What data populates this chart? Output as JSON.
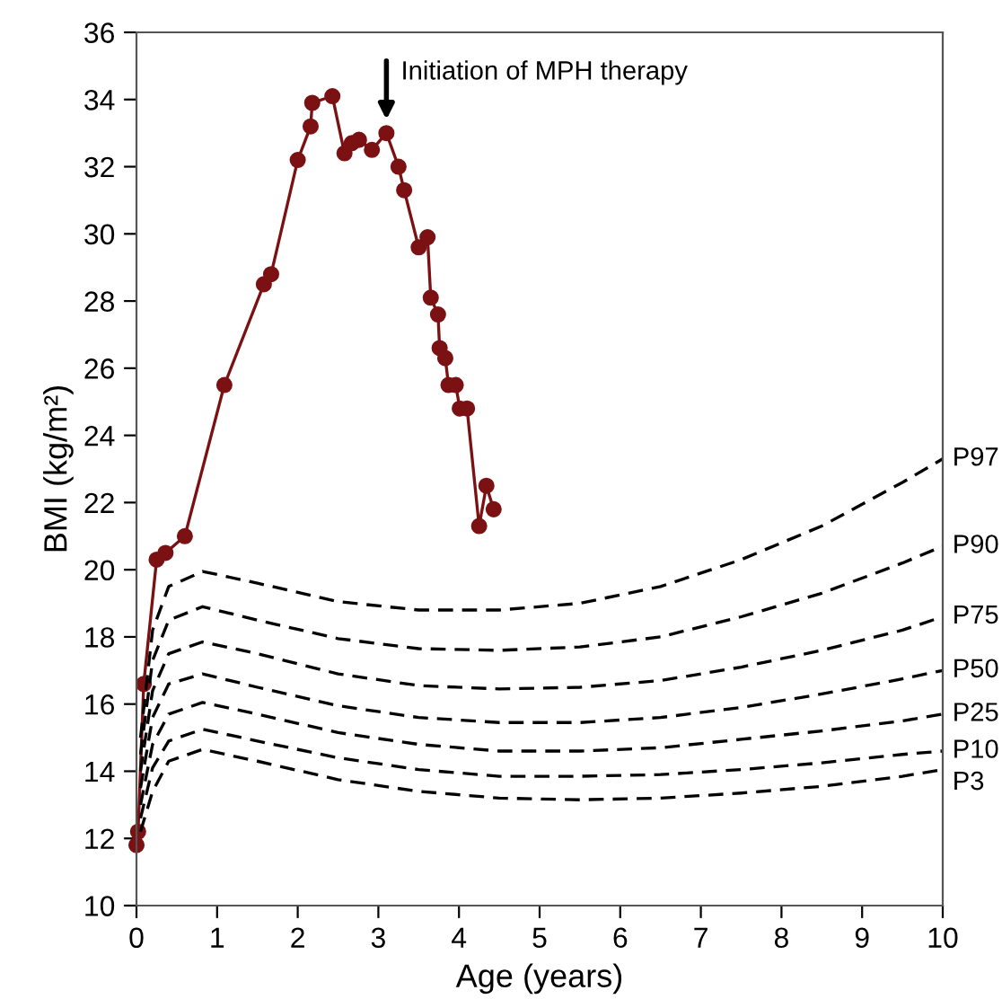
{
  "chart_data": {
    "type": "line",
    "xlabel": "Age (years)",
    "ylabel": "BMI (kg/m²)",
    "xlim": [
      0,
      10
    ],
    "ylim": [
      10,
      36
    ],
    "xticks": [
      0,
      1,
      2,
      3,
      4,
      5,
      6,
      7,
      8,
      9,
      10
    ],
    "yticks": [
      10,
      12,
      14,
      16,
      18,
      20,
      22,
      24,
      26,
      28,
      30,
      32,
      34,
      36
    ],
    "grid": false,
    "legend": false,
    "annotations": [
      {
        "text": "Initiation of MPH therapy",
        "x": 3.1,
        "y": 33.0
      }
    ],
    "series": [
      {
        "color": "#7b1113",
        "marker": "circle",
        "line_style": "solid",
        "x": [
          0.0,
          0.02,
          0.09,
          0.25,
          0.36,
          0.6,
          1.09,
          1.58,
          1.67,
          2.0,
          2.16,
          2.18,
          2.43,
          2.58,
          2.67,
          2.76,
          2.92,
          3.1,
          3.25,
          3.32,
          3.5,
          3.61,
          3.65,
          3.74,
          3.76,
          3.83,
          3.87,
          3.96,
          4.01,
          4.1,
          4.25,
          4.34,
          4.43
        ],
        "values": [
          11.8,
          12.2,
          16.6,
          20.3,
          20.5,
          21.0,
          25.5,
          28.5,
          28.8,
          32.2,
          33.2,
          33.9,
          34.1,
          32.4,
          32.7,
          32.8,
          32.5,
          33.0,
          32.0,
          31.3,
          29.6,
          29.9,
          28.1,
          27.6,
          26.6,
          26.3,
          25.5,
          25.5,
          24.8,
          24.8,
          21.3,
          22.5,
          21.8
        ]
      },
      {
        "name": "P97",
        "color": "#000000",
        "marker": "none",
        "line_style": "dashed",
        "x": [
          0.05,
          0.2,
          0.4,
          0.82,
          1.5,
          2.5,
          3.5,
          4.5,
          5.5,
          6.5,
          7.5,
          8.5,
          9.5,
          10
        ],
        "values": [
          15.0,
          18.2,
          19.5,
          19.95,
          19.6,
          19.05,
          18.8,
          18.8,
          19.0,
          19.5,
          20.3,
          21.3,
          22.6,
          23.3
        ]
      },
      {
        "name": "P90",
        "color": "#000000",
        "marker": "none",
        "line_style": "dashed",
        "x": [
          0.05,
          0.2,
          0.4,
          0.82,
          1.5,
          2.5,
          3.5,
          4.5,
          5.5,
          6.5,
          7.5,
          8.5,
          9.5,
          10
        ],
        "values": [
          14.5,
          17.3,
          18.5,
          18.9,
          18.5,
          17.95,
          17.65,
          17.6,
          17.7,
          18.0,
          18.6,
          19.3,
          20.2,
          20.7
        ]
      },
      {
        "name": "P75",
        "color": "#000000",
        "marker": "none",
        "line_style": "dashed",
        "x": [
          0.05,
          0.2,
          0.4,
          0.82,
          1.5,
          2.5,
          3.5,
          4.5,
          5.5,
          6.5,
          7.5,
          8.5,
          9.5,
          10
        ],
        "values": [
          14.0,
          16.4,
          17.5,
          17.85,
          17.5,
          16.9,
          16.55,
          16.45,
          16.5,
          16.7,
          17.1,
          17.6,
          18.2,
          18.6
        ]
      },
      {
        "name": "P50",
        "color": "#000000",
        "marker": "none",
        "line_style": "dashed",
        "x": [
          0.05,
          0.2,
          0.4,
          0.82,
          1.5,
          2.5,
          3.5,
          4.5,
          5.5,
          6.5,
          7.5,
          8.5,
          9.5,
          10
        ],
        "values": [
          13.5,
          15.6,
          16.6,
          16.9,
          16.5,
          15.95,
          15.6,
          15.45,
          15.45,
          15.6,
          15.9,
          16.3,
          16.75,
          17.0
        ]
      },
      {
        "name": "P25",
        "color": "#000000",
        "marker": "none",
        "line_style": "dashed",
        "x": [
          0.05,
          0.2,
          0.4,
          0.82,
          1.5,
          2.5,
          3.5,
          4.5,
          5.5,
          6.5,
          7.5,
          8.5,
          9.5,
          10
        ],
        "values": [
          13.0,
          14.8,
          15.7,
          16.05,
          15.7,
          15.15,
          14.8,
          14.6,
          14.6,
          14.7,
          14.95,
          15.2,
          15.5,
          15.7
        ]
      },
      {
        "name": "P10",
        "color": "#000000",
        "marker": "none",
        "line_style": "dashed",
        "x": [
          0.05,
          0.2,
          0.4,
          0.82,
          1.5,
          2.5,
          3.5,
          4.5,
          5.5,
          6.5,
          7.5,
          8.5,
          9.5,
          10
        ],
        "values": [
          12.6,
          14.1,
          14.9,
          15.25,
          14.9,
          14.4,
          14.05,
          13.85,
          13.85,
          13.9,
          14.05,
          14.25,
          14.5,
          14.6
        ]
      },
      {
        "name": "P3",
        "color": "#000000",
        "marker": "none",
        "line_style": "dashed",
        "x": [
          0.05,
          0.2,
          0.4,
          0.82,
          1.5,
          2.5,
          3.5,
          4.5,
          5.5,
          6.5,
          7.5,
          8.5,
          9.5,
          10
        ],
        "values": [
          12.2,
          13.4,
          14.3,
          14.65,
          14.3,
          13.75,
          13.4,
          13.2,
          13.15,
          13.2,
          13.35,
          13.55,
          13.85,
          14.05
        ]
      }
    ]
  }
}
